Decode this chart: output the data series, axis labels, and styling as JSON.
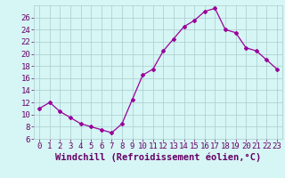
{
  "x": [
    0,
    1,
    2,
    3,
    4,
    5,
    6,
    7,
    8,
    9,
    10,
    11,
    12,
    13,
    14,
    15,
    16,
    17,
    18,
    19,
    20,
    21,
    22,
    23
  ],
  "y": [
    11,
    12,
    10.5,
    9.5,
    8.5,
    8,
    7.5,
    7,
    8.5,
    12.5,
    16.5,
    17.5,
    20.5,
    22.5,
    24.5,
    25.5,
    27,
    27.5,
    24,
    23.5,
    21,
    20.5,
    19,
    17.5
  ],
  "line_color": "#990099",
  "marker": "D",
  "marker_size": 2,
  "bg_color": "#d6f5f5",
  "grid_color": "#aacccc",
  "xlabel": "Windchill (Refroidissement éolien,°C)",
  "xlabel_color": "#660066",
  "xlabel_fontsize": 7.5,
  "tick_color": "#660066",
  "tick_labelsize": 6.5,
  "ylim": [
    6,
    28
  ],
  "yticks": [
    6,
    8,
    10,
    12,
    14,
    16,
    18,
    20,
    22,
    24,
    26
  ],
  "xlim": [
    -0.5,
    23.5
  ],
  "xticks": [
    0,
    1,
    2,
    3,
    4,
    5,
    6,
    7,
    8,
    9,
    10,
    11,
    12,
    13,
    14,
    15,
    16,
    17,
    18,
    19,
    20,
    21,
    22,
    23
  ]
}
